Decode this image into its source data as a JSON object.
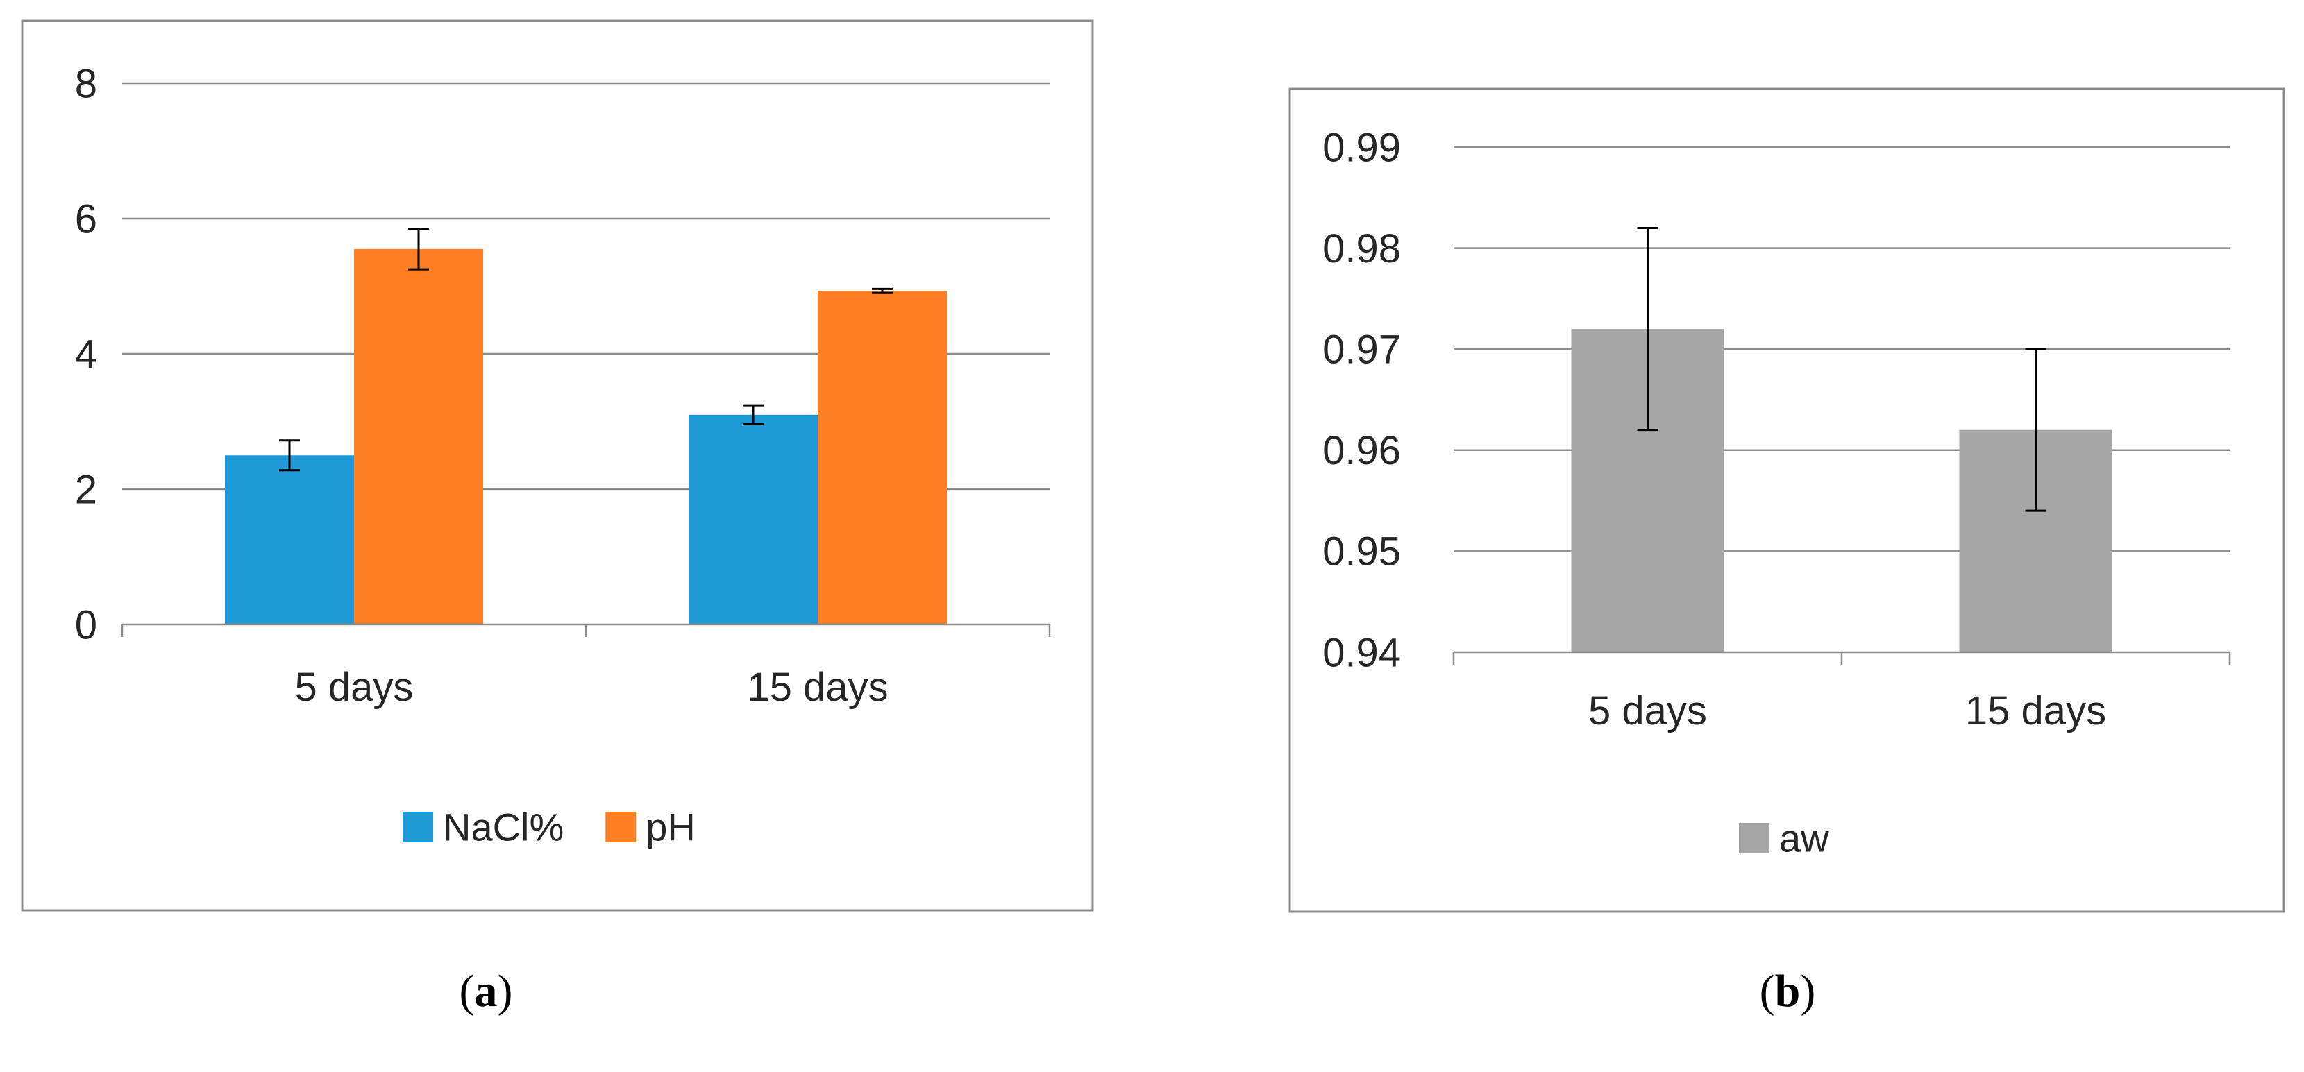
{
  "colors": {
    "nacl": "#1F9AD6",
    "ph": "#FF7F27",
    "aw": "#A6A6A6",
    "grid": "#8C8C8C",
    "frame": "#8C8C8C",
    "axis_text": "#262626",
    "error_bar": "#000000"
  },
  "chart_data": [
    {
      "type": "bar",
      "panel_label": "a",
      "categories": [
        "5 days",
        "15 days"
      ],
      "series": [
        {
          "name": "NaCl%",
          "values": [
            2.5,
            3.1
          ],
          "errors": [
            0.22,
            0.14
          ]
        },
        {
          "name": "pH",
          "values": [
            5.55,
            4.93
          ],
          "errors": [
            0.3,
            0.03
          ]
        }
      ],
      "ylim": [
        0,
        8
      ],
      "yticks": [
        0,
        2,
        4,
        6,
        8
      ],
      "ytick_labels": [
        "0",
        "2",
        "4",
        "6",
        "8"
      ],
      "grid": true,
      "legend": "bottom",
      "title": "",
      "xlabel": "",
      "ylabel": ""
    },
    {
      "type": "bar",
      "panel_label": "b",
      "categories": [
        "5 days",
        "15 days"
      ],
      "series": [
        {
          "name": "aw",
          "values": [
            0.972,
            0.962
          ],
          "errors": [
            0.01,
            0.008
          ]
        }
      ],
      "ylim": [
        0.94,
        0.99
      ],
      "yticks": [
        0.94,
        0.95,
        0.96,
        0.97,
        0.98,
        0.99
      ],
      "ytick_labels": [
        "0.94",
        "0.95",
        "0.96",
        "0.97",
        "0.98",
        "0.99"
      ],
      "grid": true,
      "legend": "bottom",
      "title": "",
      "xlabel": "",
      "ylabel": ""
    }
  ]
}
